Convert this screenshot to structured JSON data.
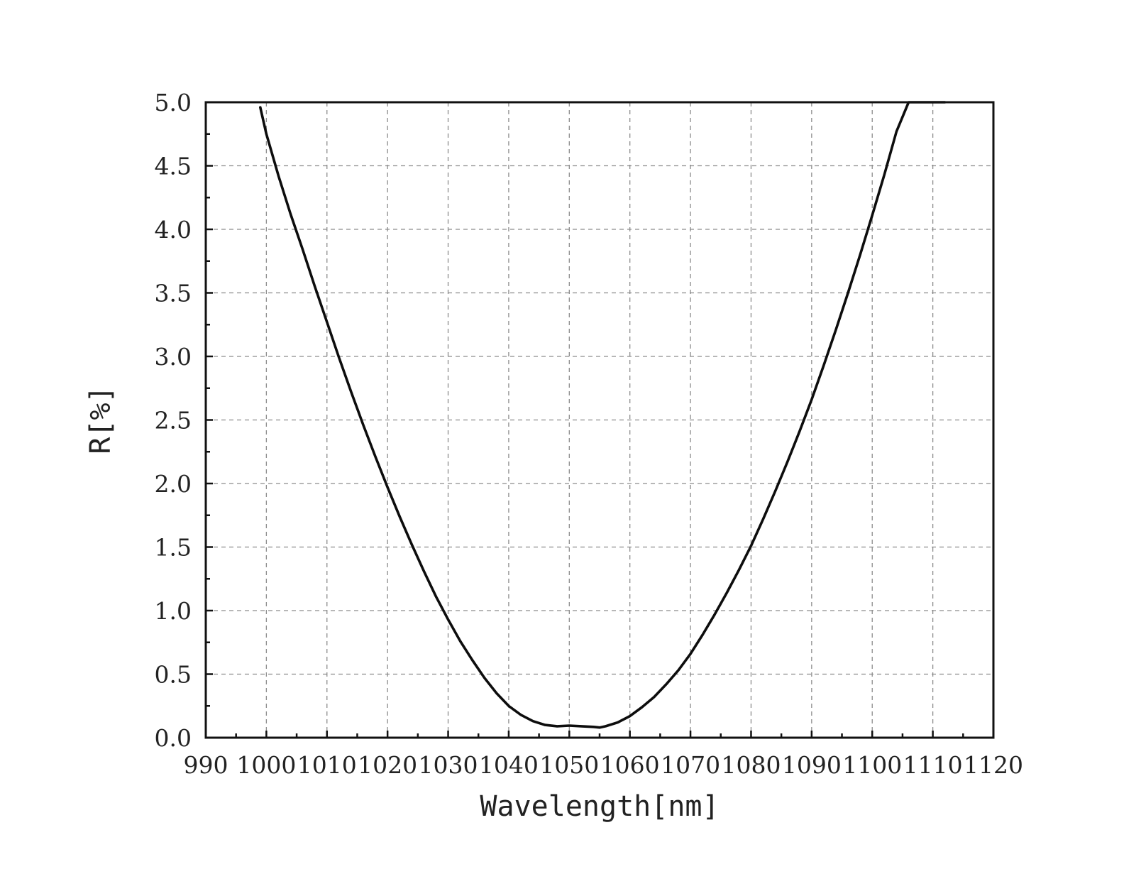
{
  "chart_data": {
    "type": "line",
    "title": "",
    "xlabel": "Wavelength[nm]",
    "ylabel": "R[%]",
    "xlim": [
      990,
      1120
    ],
    "ylim": [
      0,
      5
    ],
    "xticks": [
      990,
      1000,
      1010,
      1020,
      1030,
      1040,
      1050,
      1060,
      1070,
      1080,
      1090,
      1100,
      1110,
      1120
    ],
    "xtick_labels": [
      "990",
      "1000",
      "1010",
      "1020",
      "1030",
      "1040",
      "1050",
      "1060",
      "1070",
      "1080",
      "1090",
      "1100",
      "1110",
      "1120"
    ],
    "yticks": [
      0,
      0.5,
      1,
      1.5,
      2,
      2.5,
      3,
      3.5,
      4,
      4.5,
      5
    ],
    "ytick_labels": [
      "0.0",
      "0.5",
      "1.0",
      "1.5",
      "2.0",
      "2.5",
      "3.0",
      "3.5",
      "4.0",
      "4.5",
      "5.0"
    ],
    "grid": true,
    "legend": "none",
    "series": [
      {
        "color": "#0d0d0d",
        "x": [
          999,
          1000,
          1002,
          1004,
          1006,
          1008,
          1010,
          1012,
          1014,
          1016,
          1018,
          1020,
          1022,
          1024,
          1026,
          1028,
          1030,
          1032,
          1034,
          1036,
          1038,
          1040,
          1042,
          1044,
          1046,
          1048,
          1050,
          1052,
          1054,
          1055,
          1056,
          1058,
          1060,
          1062,
          1064,
          1066,
          1068,
          1070,
          1072,
          1074,
          1076,
          1078,
          1080,
          1082,
          1084,
          1086,
          1088,
          1090,
          1092,
          1094,
          1096,
          1098,
          1100,
          1102,
          1104,
          1106,
          1108,
          1110,
          1112
        ],
        "y": [
          4.96,
          4.75,
          4.42,
          4.12,
          3.84,
          3.55,
          3.27,
          2.99,
          2.72,
          2.46,
          2.21,
          1.97,
          1.74,
          1.52,
          1.31,
          1.11,
          0.93,
          0.76,
          0.61,
          0.47,
          0.35,
          0.25,
          0.18,
          0.13,
          0.1,
          0.09,
          0.095,
          0.09,
          0.085,
          0.08,
          0.09,
          0.12,
          0.17,
          0.24,
          0.32,
          0.42,
          0.53,
          0.66,
          0.81,
          0.97,
          1.14,
          1.32,
          1.51,
          1.72,
          1.94,
          2.17,
          2.41,
          2.66,
          2.93,
          3.21,
          3.5,
          3.8,
          4.11,
          4.43,
          4.77,
          5.0,
          5.0,
          5.0,
          5.0
        ]
      }
    ]
  }
}
